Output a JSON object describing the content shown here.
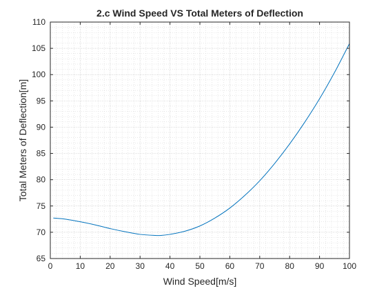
{
  "chart_data": {
    "type": "line",
    "title": "2.c Wind Speed VS Total Meters of Deflection",
    "xlabel": "Wind Speed[m/s]",
    "ylabel": "Total Meters of Deflection[m]",
    "xlim": [
      0,
      100
    ],
    "ylim": [
      65,
      110
    ],
    "xticks": [
      0,
      10,
      20,
      30,
      40,
      50,
      60,
      70,
      80,
      90,
      100
    ],
    "yticks": [
      65,
      70,
      75,
      80,
      85,
      90,
      95,
      100,
      105,
      110
    ],
    "grid": "major and minor, dotted",
    "line_color": "#0072BD",
    "series": [
      {
        "x": [
          1,
          5,
          10,
          15,
          20,
          25,
          30,
          35,
          37,
          40,
          45,
          50,
          55,
          60,
          65,
          70,
          75,
          80,
          85,
          90,
          95,
          100
        ],
        "y": [
          72.7,
          72.5,
          72.0,
          71.4,
          70.7,
          70.1,
          69.6,
          69.4,
          69.4,
          69.6,
          70.2,
          71.2,
          72.7,
          74.6,
          77.0,
          79.8,
          83.1,
          86.8,
          90.9,
          95.4,
          100.4,
          105.9
        ]
      }
    ]
  }
}
